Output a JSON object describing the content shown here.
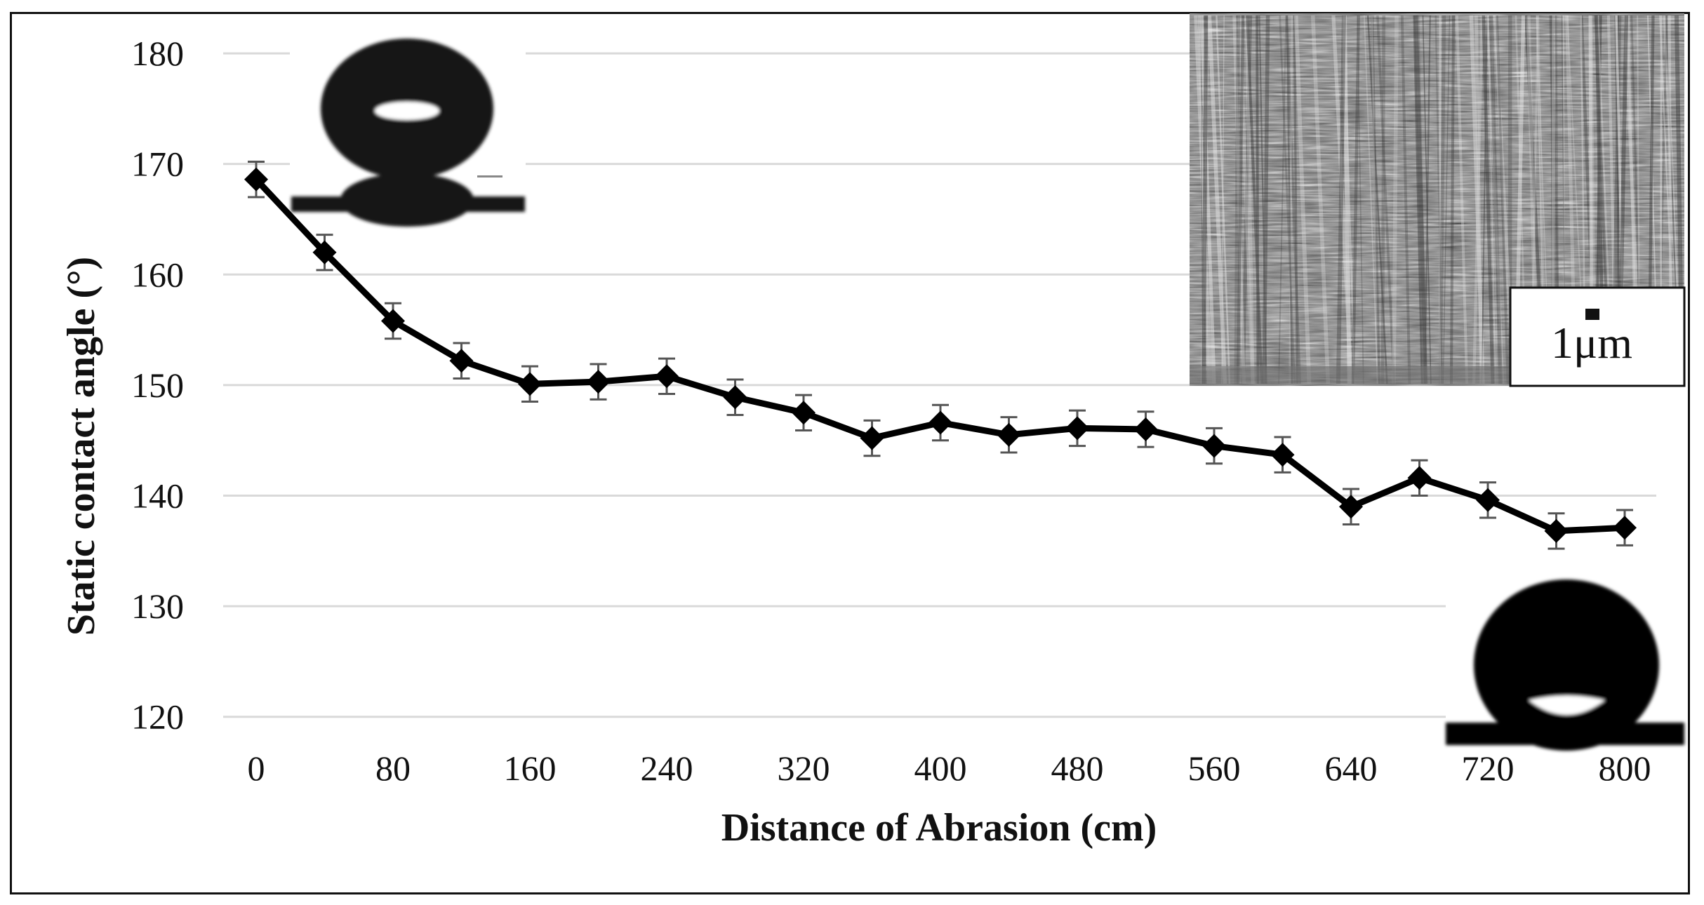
{
  "chart_data": {
    "type": "line",
    "title": "",
    "xlabel": "Distance of Abrasion (cm)",
    "ylabel": "Static contact angle (°)",
    "ylim": [
      120,
      180
    ],
    "xlim": [
      0,
      800
    ],
    "y_ticks": [
      120,
      130,
      140,
      150,
      160,
      170,
      180
    ],
    "x_ticks": [
      0,
      80,
      160,
      240,
      320,
      400,
      480,
      560,
      640,
      720,
      800
    ],
    "grid": "horizontal",
    "legend": null,
    "marker": "diamond",
    "series": [
      {
        "name": "Static contact angle",
        "x": [
          0,
          40,
          80,
          120,
          160,
          200,
          240,
          280,
          320,
          360,
          400,
          440,
          480,
          520,
          560,
          600,
          640,
          680,
          720,
          760,
          800
        ],
        "values": [
          168.6,
          162.0,
          155.8,
          152.2,
          150.1,
          150.3,
          150.8,
          148.9,
          147.5,
          145.2,
          146.6,
          145.5,
          146.1,
          146.0,
          144.5,
          143.7,
          139.0,
          141.6,
          139.6,
          136.8,
          137.1
        ],
        "error": [
          1.6,
          1.6,
          1.6,
          1.6,
          1.6,
          1.6,
          1.6,
          1.6,
          1.6,
          1.6,
          1.6,
          1.6,
          1.6,
          1.6,
          1.6,
          1.6,
          1.6,
          1.6,
          1.6,
          1.6,
          1.6
        ]
      }
    ],
    "insets": [
      {
        "name": "droplet-before-abrasion",
        "position": "top-left"
      },
      {
        "name": "sem-micrograph",
        "position": "top-right",
        "scale_bar": "1μm"
      },
      {
        "name": "droplet-after-abrasion",
        "position": "bottom-right"
      }
    ]
  },
  "colors": {
    "line": "#000000",
    "gridline": "#d9d9d9",
    "errorbar": "#555555",
    "frame": "#111111"
  },
  "scale_bar_label": "1μm"
}
